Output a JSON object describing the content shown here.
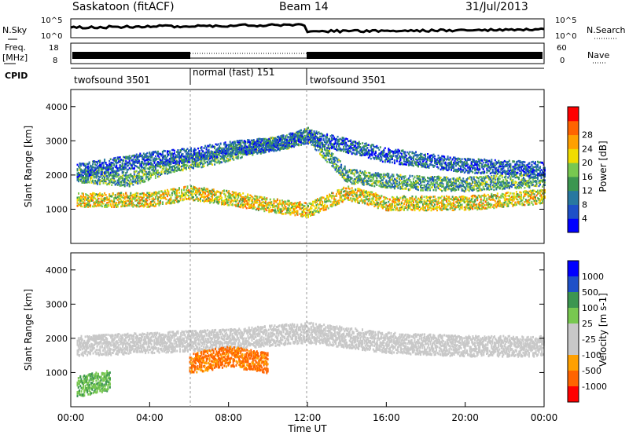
{
  "header": {
    "station": "Saskatoon (fitACF)",
    "beam": "Beam 14",
    "date": "31/Jul/2013"
  },
  "noise_panel": {
    "left_label": "N.Sky",
    "right_label": "N.Search",
    "left_ticks": [
      "10^5",
      "10^0"
    ],
    "right_ticks": [
      "10^5",
      "10^0"
    ]
  },
  "freq_panel": {
    "left_label_1": "Freq.",
    "left_label_2": "[MHz]",
    "right_label": "Nave",
    "left_ticks": [
      "18",
      "8"
    ],
    "right_ticks": [
      "60",
      "0"
    ]
  },
  "cpid": {
    "label": "CPID",
    "segments": [
      {
        "label": "twofsound 3501",
        "start": 0,
        "end": 6
      },
      {
        "label": "normal (fast) 151",
        "start": 6,
        "end": 12
      },
      {
        "label": "twofsound 3501",
        "start": 12,
        "end": 24
      }
    ]
  },
  "colors": {
    "power": [
      "#0000ff",
      "#1e50c8",
      "#2878a0",
      "#3c9650",
      "#78c850",
      "#f0dc00",
      "#ffa000",
      "#ff6400",
      "#ff0000"
    ],
    "velocity": [
      "#ff0000",
      "#ff6400",
      "#ffa000",
      "#c8c8c8",
      "#c8c8c8",
      "#78c850",
      "#3c9650",
      "#1e50c8",
      "#0000ff"
    ]
  },
  "chart_data": [
    {
      "type": "heatmap",
      "title": "",
      "xlabel": "Time UT",
      "ylabel": "Slant Range [km]",
      "xlim": [
        0,
        24
      ],
      "ylim": [
        0,
        4500
      ],
      "x_ticks": [
        "00:00",
        "04:00",
        "08:00",
        "12:00",
        "16:00",
        "20:00",
        "00:00"
      ],
      "y_ticks": [
        1000,
        2000,
        3000,
        4000
      ],
      "colorbar": {
        "label": "Power [dB]",
        "ticks": [
          4,
          8,
          12,
          16,
          20,
          24,
          28
        ]
      },
      "backscatter_bands": [
        {
          "x": [
            0.3,
            4,
            6,
            8,
            10,
            12,
            14,
            16,
            20,
            24
          ],
          "y": [
            1300,
            1300,
            1500,
            1350,
            1150,
            1000,
            1500,
            1200,
            1200,
            1400
          ],
          "power_db": 20
        },
        {
          "x": [
            0.3,
            3,
            5,
            7,
            9,
            11,
            12,
            14,
            17,
            20,
            24
          ],
          "y": [
            2000,
            1900,
            2300,
            2500,
            2800,
            3000,
            3200,
            2000,
            1800,
            1750,
            1900
          ],
          "power_db": 12
        },
        {
          "x": [
            0.3,
            2,
            4,
            6,
            8,
            10,
            12,
            16,
            20,
            24
          ],
          "y": [
            2150,
            2300,
            2500,
            2600,
            2800,
            2900,
            3150,
            2600,
            2300,
            2200
          ],
          "power_db": 6
        }
      ]
    },
    {
      "type": "heatmap",
      "title": "",
      "xlabel": "Time UT",
      "ylabel": "Slant Range [km]",
      "xlim": [
        0,
        24
      ],
      "ylim": [
        0,
        4500
      ],
      "x_ticks": [
        "00:00",
        "04:00",
        "08:00",
        "12:00",
        "16:00",
        "20:00",
        "00:00"
      ],
      "y_ticks": [
        1000,
        2000,
        3000,
        4000
      ],
      "colorbar": {
        "label": "Velocity [m s-1]",
        "ticks": [
          "1000",
          "500",
          "100",
          "25",
          "-25",
          "-100",
          "-500",
          "-1000"
        ]
      },
      "backscatter_bands": [
        {
          "x": [
            0.3,
            4,
            8,
            12,
            16,
            20,
            24
          ],
          "y": [
            1800,
            1900,
            2000,
            2200,
            1900,
            1800,
            1800
          ],
          "velocity": 0
        },
        {
          "x": [
            6,
            7,
            8,
            9,
            10
          ],
          "y": [
            1300,
            1400,
            1500,
            1400,
            1300
          ],
          "velocity": -300
        },
        {
          "x": [
            0.3,
            1,
            2
          ],
          "y": [
            600,
            700,
            800
          ],
          "velocity": 50
        }
      ]
    }
  ]
}
